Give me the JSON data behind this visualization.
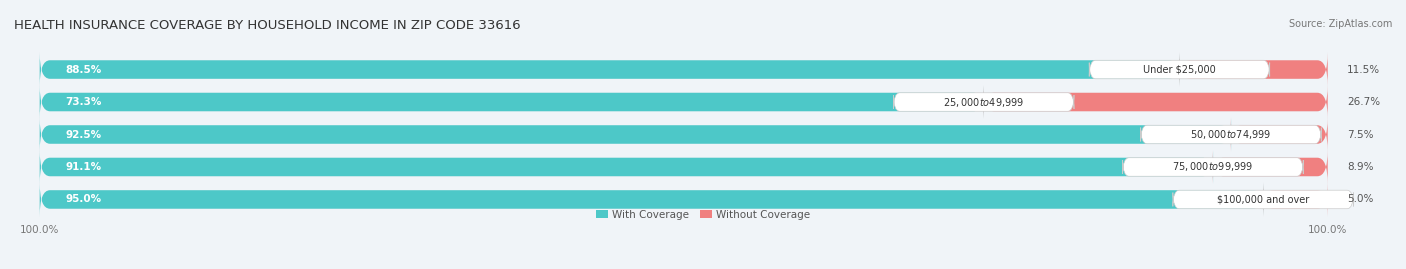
{
  "title": "HEALTH INSURANCE COVERAGE BY HOUSEHOLD INCOME IN ZIP CODE 33616",
  "source": "Source: ZipAtlas.com",
  "categories": [
    "Under $25,000",
    "$25,000 to $49,999",
    "$50,000 to $74,999",
    "$75,000 to $99,999",
    "$100,000 and over"
  ],
  "with_coverage": [
    88.5,
    73.3,
    92.5,
    91.1,
    95.0
  ],
  "without_coverage": [
    11.5,
    26.7,
    7.5,
    8.9,
    5.0
  ],
  "color_with": "#4dc8c8",
  "color_without": "#f08080",
  "background_color": "#f0f4f8",
  "bar_background": "#ffffff",
  "title_fontsize": 9.5,
  "label_fontsize": 7.5,
  "tick_fontsize": 7.5,
  "bar_height": 0.55,
  "xlim": [
    0,
    100
  ]
}
